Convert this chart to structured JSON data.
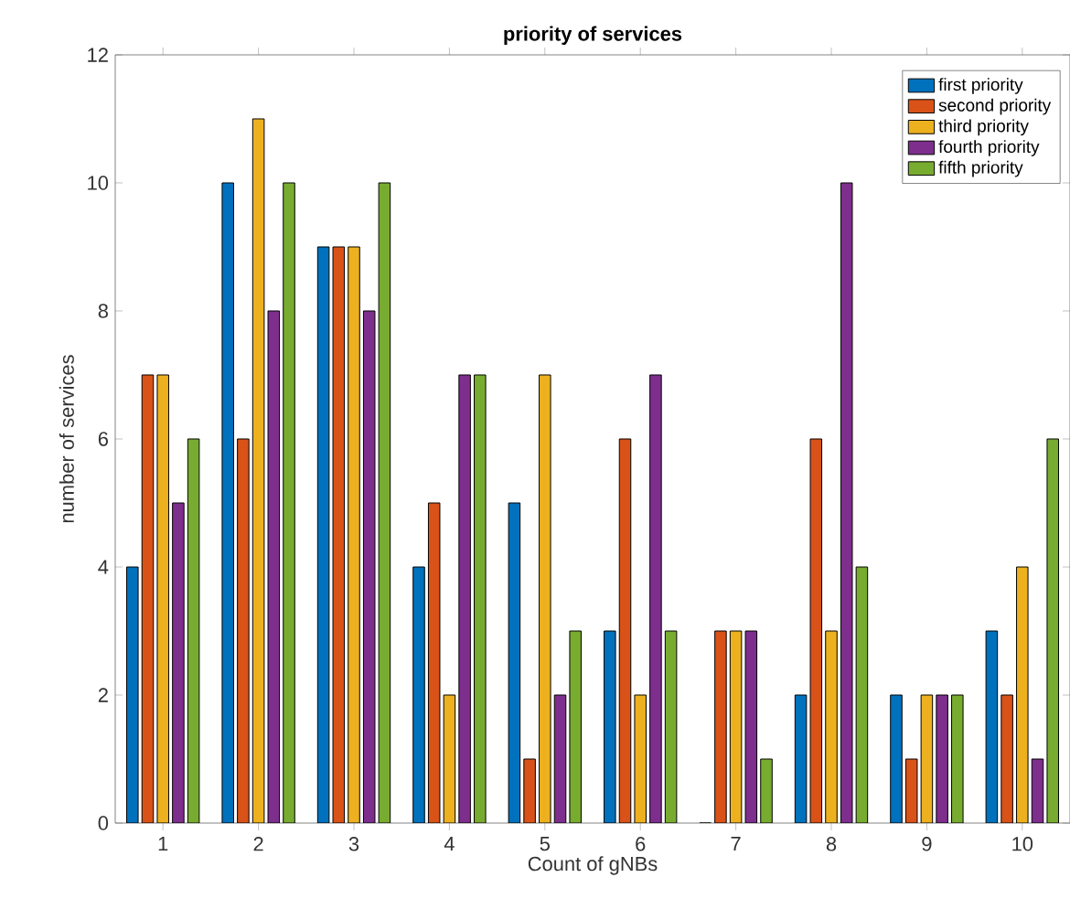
{
  "chart_data": {
    "type": "bar",
    "title": "priority of services",
    "xlabel": "Count of gNBs",
    "ylabel": "number of services",
    "categories": [
      "1",
      "2",
      "3",
      "4",
      "5",
      "6",
      "7",
      "8",
      "9",
      "10"
    ],
    "series": [
      {
        "name": "first priority",
        "color": "#0072bd",
        "values": [
          4,
          10,
          9,
          4,
          5,
          3,
          0,
          2,
          2,
          3
        ]
      },
      {
        "name": "second priority",
        "color": "#d95319",
        "values": [
          7,
          6,
          9,
          5,
          1,
          6,
          3,
          6,
          1,
          2
        ]
      },
      {
        "name": "third priority",
        "color": "#edb120",
        "values": [
          7,
          11,
          9,
          2,
          7,
          2,
          3,
          3,
          2,
          4
        ]
      },
      {
        "name": "fourth priority",
        "color": "#7e2f8e",
        "values": [
          5,
          8,
          8,
          7,
          2,
          7,
          3,
          10,
          2,
          1
        ]
      },
      {
        "name": "fifth priority",
        "color": "#77ac30",
        "values": [
          6,
          10,
          10,
          7,
          3,
          3,
          1,
          4,
          2,
          6
        ]
      }
    ],
    "ylim": [
      0,
      12
    ],
    "yticks": [
      0,
      2,
      4,
      6,
      8,
      10,
      12
    ],
    "grid": false,
    "legend": "top right"
  }
}
